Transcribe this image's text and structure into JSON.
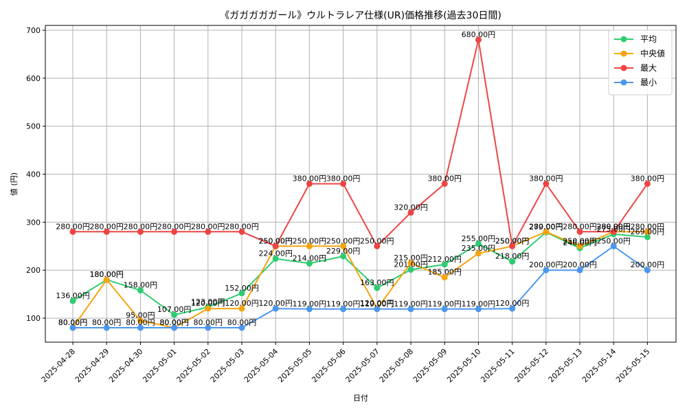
{
  "chart_data": {
    "type": "line",
    "title": "《ガガガガガール》ウルトラレア仕様(UR)価格推移(過去30日間)",
    "xlabel": "日付",
    "ylabel": "値 (円)",
    "categories": [
      "2025-04-28",
      "2025-04-29",
      "2025-04-30",
      "2025-05-01",
      "2025-05-02",
      "2025-05-03",
      "2025-05-04",
      "2025-05-05",
      "2025-05-06",
      "2025-05-07",
      "2025-05-08",
      "2025-05-09",
      "2025-05-10",
      "2025-05-11",
      "2025-05-12",
      "2025-05-13",
      "2025-05-14",
      "2025-05-15"
    ],
    "ylim": [
      50,
      710
    ],
    "yticks": [
      100,
      200,
      300,
      400,
      500,
      600,
      700
    ],
    "grid": true,
    "legend_position": "top-right",
    "label_suffix": "円",
    "series": [
      {
        "name": "平均",
        "color": "#2ecc71",
        "values": [
          136,
          180,
          158,
          107,
          123,
          152,
          224,
          214,
          229,
          163,
          201,
          212,
          255,
          218,
          279,
          246,
          275,
          269
        ]
      },
      {
        "name": "中央値",
        "color": "#f5a40c",
        "values": [
          80,
          180,
          95,
          80,
          120,
          120,
          250,
          250,
          250,
          120,
          215,
          185,
          235,
          250,
          280,
          250,
          280,
          280
        ]
      },
      {
        "name": "最大",
        "color": "#ef4444",
        "values": [
          280,
          280,
          280,
          280,
          280,
          280,
          250,
          380,
          380,
          250,
          320,
          380,
          680,
          250,
          380,
          280,
          280,
          380
        ]
      },
      {
        "name": "最小",
        "color": "#4b96ef",
        "values": [
          80,
          80,
          80,
          80,
          80,
          80,
          120,
          119,
          119,
          119,
          119,
          119,
          119,
          120,
          200,
          200,
          250,
          200
        ]
      }
    ]
  }
}
